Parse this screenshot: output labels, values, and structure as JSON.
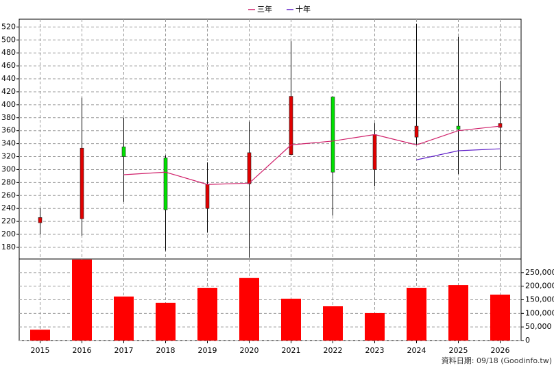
{
  "chart_data": [
    {
      "type": "candlestick",
      "categories": [
        "2015",
        "2016",
        "2017",
        "2018",
        "2019",
        "2020",
        "2021",
        "2022",
        "2023",
        "2024",
        "2025",
        "2026"
      ],
      "open": [
        218,
        224,
        335,
        318,
        240,
        278,
        323,
        412,
        300,
        350,
        367,
        365
      ],
      "high": [
        240,
        411,
        380,
        322,
        311,
        374,
        498,
        413,
        372,
        525,
        505,
        437
      ],
      "low": [
        200,
        198,
        250,
        175,
        203,
        164,
        323,
        229,
        274,
        338,
        293,
        300
      ],
      "close": [
        226,
        333,
        320,
        238,
        277,
        326,
        413,
        296,
        354,
        367,
        362,
        371
      ],
      "up_color": "#e00000",
      "down_color": "#00e000",
      "series": [
        {
          "name": "三年",
          "color": "#d0206a",
          "values": [
            null,
            null,
            292,
            296,
            277,
            279,
            338,
            344,
            354,
            338,
            360,
            367
          ]
        },
        {
          "name": "十年",
          "color": "#6020c8",
          "values": [
            null,
            null,
            null,
            null,
            null,
            null,
            null,
            null,
            null,
            315,
            329,
            332
          ]
        }
      ],
      "ylim": [
        162,
        532
      ],
      "yticks": [
        180,
        200,
        220,
        240,
        260,
        280,
        300,
        320,
        340,
        360,
        380,
        400,
        420,
        440,
        460,
        480,
        500,
        520
      ],
      "grid": true
    },
    {
      "type": "bar",
      "color": "#ff0000",
      "values": [
        40000,
        298000,
        162000,
        139000,
        194000,
        230000,
        154000,
        126000,
        101000,
        194000,
        204000,
        169000
      ],
      "ylim": [
        0,
        300000
      ],
      "yticks": [
        0,
        {
          "value": 50000,
          "label": "50,000"
        },
        {
          "value": 100000,
          "label": "100,000"
        },
        {
          "value": 150000,
          "label": "150,000"
        },
        {
          "value": 200000,
          "label": "200,000"
        },
        {
          "value": 250000,
          "label": "250,000"
        }
      ],
      "grid": true
    }
  ],
  "footer": "資料日期: 09/18 (Goodinfo.tw)"
}
